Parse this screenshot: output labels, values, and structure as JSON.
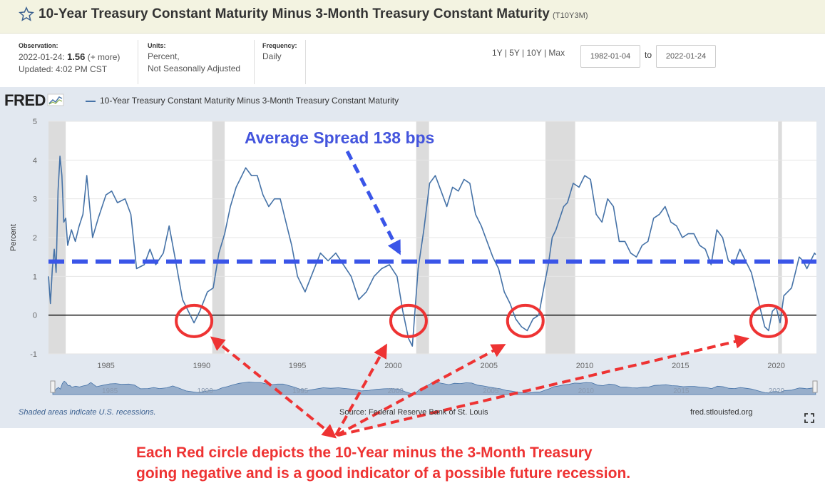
{
  "header": {
    "title": "10-Year Treasury Constant Maturity Minus 3-Month Treasury Constant Maturity",
    "series_code": "(T10Y3M)"
  },
  "meta": {
    "observation_label": "Observation:",
    "observation_date": "2022-01-24:",
    "observation_value": "1.56",
    "observation_more": "(+ more)",
    "updated": "Updated: 4:02 PM CST",
    "units_label": "Units:",
    "units_line1": "Percent,",
    "units_line2": "Not Seasonally Adjusted",
    "frequency_label": "Frequency:",
    "frequency_value": "Daily"
  },
  "range": {
    "links": "1Y | 5Y | 10Y | Max",
    "start": "1982-01-04",
    "to": "to",
    "end": "2022-01-24"
  },
  "logo": "FRED",
  "legend_label": "10-Year Treasury Constant Maturity Minus 3-Month Treasury Constant Maturity",
  "footer": {
    "recessions_note": "Shaded areas indicate U.S. recessions.",
    "source": "Source: Federal Reserve Bank of St. Louis",
    "site": "fred.stlouisfed.org"
  },
  "annotations": {
    "average_label": "Average Spread 138 bps",
    "note_line1": "Each Red circle depicts the 10-Year minus the 3-Month Treasury",
    "note_line2": "going negative and is a good indicator of a possible future recession."
  },
  "colors": {
    "series": "#4572a7",
    "recession": "#dcdcdc",
    "average_line": "#3a55e8",
    "annotation_red": "#ee3333"
  },
  "chart_data": {
    "type": "line",
    "ylabel": "Percent",
    "xlim": [
      1982.0,
      2022.1
    ],
    "ylim": [
      -1,
      5
    ],
    "y_ticks": [
      -1,
      0,
      1,
      2,
      3,
      4,
      5
    ],
    "x_ticks": [
      1985,
      1990,
      1995,
      2000,
      2005,
      2010,
      2015,
      2020
    ],
    "navigator_ticks": [
      1985,
      1990,
      1995,
      2000,
      2005,
      2010,
      2015,
      2020
    ],
    "average_spread": 1.38,
    "zero_line": 0,
    "recessions": [
      [
        1982.0,
        1982.9
      ],
      [
        1990.55,
        1991.2
      ],
      [
        2001.2,
        2001.87
      ],
      [
        2007.95,
        2009.5
      ],
      [
        2020.1,
        2020.3
      ]
    ],
    "inversion_circles": [
      1989.6,
      2000.8,
      2006.9,
      2019.6
    ],
    "series": [
      {
        "name": "10-Year Treasury Constant Maturity Minus 3-Month Treasury Constant Maturity",
        "x": [
          1982.0,
          1982.1,
          1982.2,
          1982.3,
          1982.4,
          1982.5,
          1982.6,
          1982.7,
          1982.8,
          1982.9,
          1983.0,
          1983.2,
          1983.4,
          1983.6,
          1983.8,
          1984.0,
          1984.3,
          1984.6,
          1985.0,
          1985.3,
          1985.6,
          1986.0,
          1986.3,
          1986.6,
          1987.0,
          1987.3,
          1987.6,
          1988.0,
          1988.3,
          1988.6,
          1989.0,
          1989.3,
          1989.6,
          1989.9,
          1990.3,
          1990.6,
          1990.9,
          1991.2,
          1991.5,
          1991.8,
          1992.0,
          1992.3,
          1992.6,
          1992.9,
          1993.2,
          1993.5,
          1993.8,
          1994.1,
          1994.4,
          1994.7,
          1995.0,
          1995.4,
          1995.8,
          1996.2,
          1996.6,
          1997.0,
          1997.4,
          1997.8,
          1998.2,
          1998.6,
          1999.0,
          1999.4,
          1999.8,
          2000.2,
          2000.5,
          2000.8,
          2001.0,
          2001.3,
          2001.6,
          2001.9,
          2002.2,
          2002.5,
          2002.8,
          2003.1,
          2003.4,
          2003.7,
          2004.0,
          2004.3,
          2004.6,
          2004.9,
          2005.2,
          2005.5,
          2005.8,
          2006.1,
          2006.4,
          2006.7,
          2007.0,
          2007.3,
          2007.6,
          2007.9,
          2008.1,
          2008.3,
          2008.5,
          2008.7,
          2008.9,
          2009.1,
          2009.4,
          2009.7,
          2010.0,
          2010.3,
          2010.6,
          2010.9,
          2011.2,
          2011.5,
          2011.8,
          2012.1,
          2012.4,
          2012.7,
          2013.0,
          2013.3,
          2013.6,
          2013.9,
          2014.2,
          2014.5,
          2014.8,
          2015.1,
          2015.4,
          2015.7,
          2016.0,
          2016.3,
          2016.6,
          2016.9,
          2017.2,
          2017.5,
          2017.8,
          2018.1,
          2018.4,
          2018.7,
          2019.0,
          2019.2,
          2019.4,
          2019.6,
          2019.8,
          2020.0,
          2020.2,
          2020.4,
          2020.6,
          2020.8,
          2021.0,
          2021.2,
          2021.4,
          2021.6,
          2021.8,
          2022.0,
          2022.06
        ],
        "y": [
          1.0,
          0.3,
          1.2,
          1.7,
          1.1,
          3.2,
          4.1,
          3.6,
          2.4,
          2.5,
          1.8,
          2.2,
          1.9,
          2.3,
          2.6,
          3.6,
          2.0,
          2.5,
          3.1,
          3.2,
          2.9,
          3.0,
          2.6,
          1.2,
          1.3,
          1.7,
          1.3,
          1.6,
          2.3,
          1.5,
          0.4,
          0.1,
          -0.2,
          0.1,
          0.6,
          0.7,
          1.6,
          2.1,
          2.8,
          3.3,
          3.5,
          3.8,
          3.6,
          3.6,
          3.1,
          2.8,
          3.0,
          3.0,
          2.4,
          1.8,
          1.0,
          0.6,
          1.1,
          1.6,
          1.4,
          1.6,
          1.3,
          1.0,
          0.4,
          0.6,
          1.0,
          1.2,
          1.3,
          1.0,
          0.1,
          -0.6,
          -0.8,
          1.2,
          2.2,
          3.4,
          3.6,
          3.2,
          2.8,
          3.3,
          3.2,
          3.5,
          3.4,
          2.6,
          2.3,
          1.9,
          1.5,
          1.2,
          0.6,
          0.3,
          -0.1,
          -0.3,
          -0.4,
          -0.1,
          0.0,
          0.8,
          1.3,
          2.0,
          2.2,
          2.5,
          2.8,
          2.9,
          3.4,
          3.3,
          3.6,
          3.5,
          2.6,
          2.4,
          3.0,
          2.8,
          1.9,
          1.9,
          1.6,
          1.5,
          1.8,
          1.9,
          2.5,
          2.6,
          2.8,
          2.4,
          2.3,
          2.0,
          2.1,
          2.1,
          1.8,
          1.7,
          1.3,
          2.2,
          2.0,
          1.4,
          1.3,
          1.7,
          1.4,
          1.1,
          0.5,
          0.1,
          -0.3,
          -0.4,
          0.1,
          0.2,
          -0.2,
          0.5,
          0.6,
          0.7,
          1.1,
          1.5,
          1.4,
          1.2,
          1.4,
          1.6,
          1.56
        ]
      }
    ]
  }
}
